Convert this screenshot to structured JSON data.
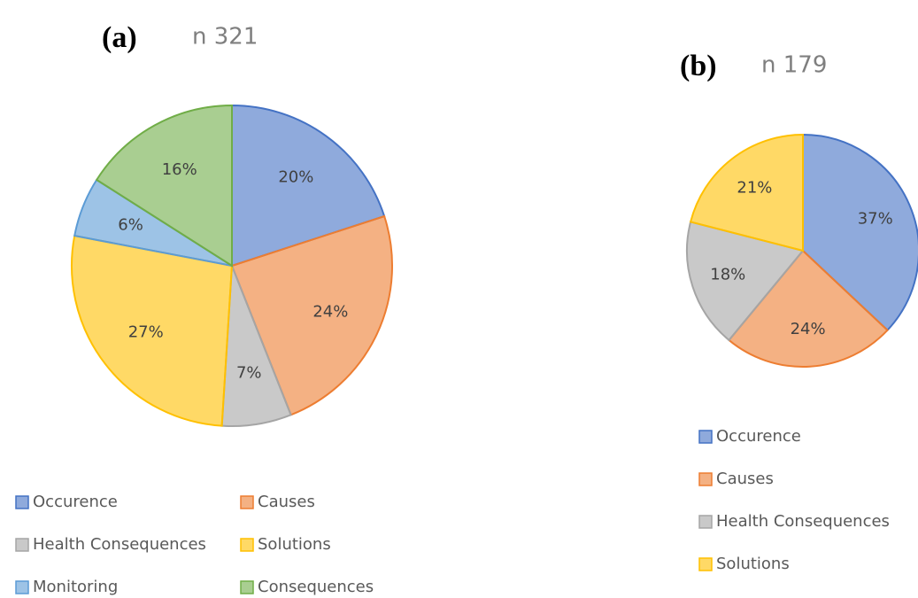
{
  "chart_data": [
    {
      "type": "pie",
      "panel": "(a)",
      "title": "n 321",
      "categories": [
        "Occurence",
        "Causes",
        "Health Consequences",
        "Solutions",
        "Monitoring",
        "Consequences"
      ],
      "values": [
        20,
        24,
        7,
        27,
        6,
        16
      ],
      "value_labels": [
        "20%",
        "24%",
        "7%",
        "27%",
        "6%",
        "16%"
      ],
      "colors": [
        "#4472c4",
        "#ed7d31",
        "#a5a5a5",
        "#ffc000",
        "#5b9bd5",
        "#70ad47"
      ]
    },
    {
      "type": "pie",
      "panel": "(b)",
      "title": "n 179",
      "categories": [
        "Occurence",
        "Causes",
        "Health Consequences",
        "Solutions"
      ],
      "values": [
        37,
        24,
        18,
        21
      ],
      "value_labels": [
        "37%",
        "24%",
        "18%",
        "21%"
      ],
      "colors": [
        "#4472c4",
        "#ed7d31",
        "#a5a5a5",
        "#ffc000"
      ]
    }
  ]
}
